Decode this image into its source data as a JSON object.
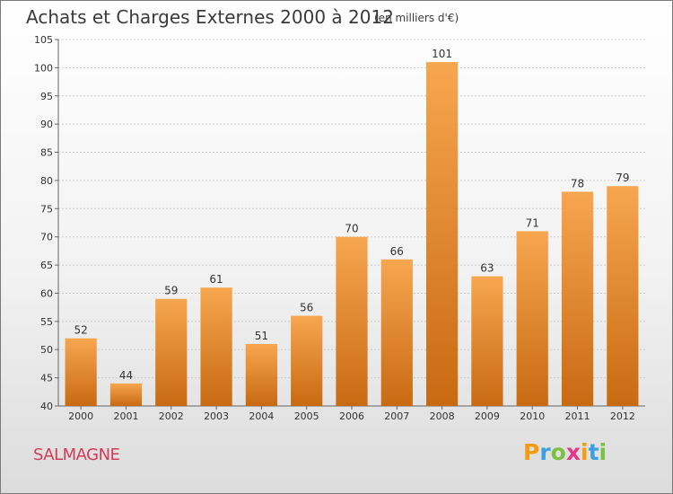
{
  "chart_data": {
    "type": "bar",
    "title": "Achats et Charges Externes 2000 à 2012",
    "subtitle": "(en milliers d'€)",
    "location_label": "SALMAGNE",
    "categories": [
      "2000",
      "2001",
      "2002",
      "2003",
      "2004",
      "2005",
      "2006",
      "2007",
      "2008",
      "2009",
      "2010",
      "2011",
      "2012"
    ],
    "values": [
      52,
      44,
      59,
      61,
      51,
      56,
      70,
      66,
      101,
      63,
      71,
      78,
      79
    ],
    "ylim": [
      40,
      105
    ],
    "yticks": [
      40,
      45,
      50,
      55,
      60,
      65,
      70,
      75,
      80,
      85,
      90,
      95,
      100,
      105
    ],
    "xlabel": "",
    "ylabel": "",
    "grid": true,
    "colors": {
      "bar_top": "#f7a650",
      "bar_bottom": "#c86a12",
      "grid": "#cccccc",
      "axis": "#666666"
    }
  },
  "logo": {
    "letters": [
      "P",
      "r",
      "o",
      "x",
      "i",
      "t",
      "i"
    ]
  }
}
